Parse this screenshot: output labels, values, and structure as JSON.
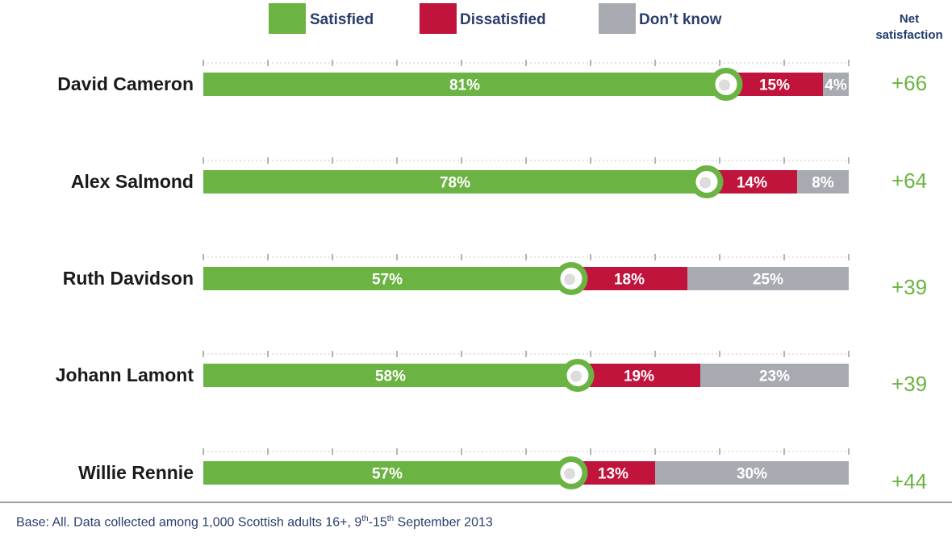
{
  "legend": {
    "satisfied": "Satisfied",
    "dissatisfied": "Dissatisfied",
    "dont_know": "Don’t know"
  },
  "net_header": {
    "line1": "Net",
    "line2": "satisfaction"
  },
  "footer": {
    "text1": "Base: All. Data collected among 1,000 Scottish adults 16+, 9",
    "sup1": "th",
    "text2": "-15",
    "sup2": "th",
    "text3": " September 2013"
  },
  "colors": {
    "satisfied": "#6bb342",
    "dissatisfied": "#c0143c",
    "dont_know": "#a7aab0",
    "net": "#6bb342"
  },
  "chart_data": {
    "type": "bar",
    "stacked": true,
    "orientation": "horizontal",
    "xlim": [
      0,
      100
    ],
    "categories": [
      "David Cameron",
      "Alex Salmond",
      "Ruth Davidson",
      "Johann Lamont",
      "Willie Rennie"
    ],
    "series": [
      {
        "name": "Satisfied",
        "values": [
          81,
          78,
          57,
          58,
          57
        ],
        "labels": [
          "81%",
          "78%",
          "57%",
          "58%",
          "57%"
        ]
      },
      {
        "name": "Dissatisfied",
        "values": [
          15,
          14,
          18,
          19,
          13
        ],
        "labels": [
          "15%",
          "14%",
          "18%",
          "19%",
          "13%"
        ]
      },
      {
        "name": "Don’t know",
        "values": [
          4,
          8,
          25,
          23,
          30
        ],
        "labels": [
          "4%",
          "8%",
          "25%",
          "23%",
          "30%"
        ]
      }
    ],
    "net_satisfaction": [
      "+66",
      "+64",
      "+39",
      "+39",
      "+44"
    ]
  }
}
